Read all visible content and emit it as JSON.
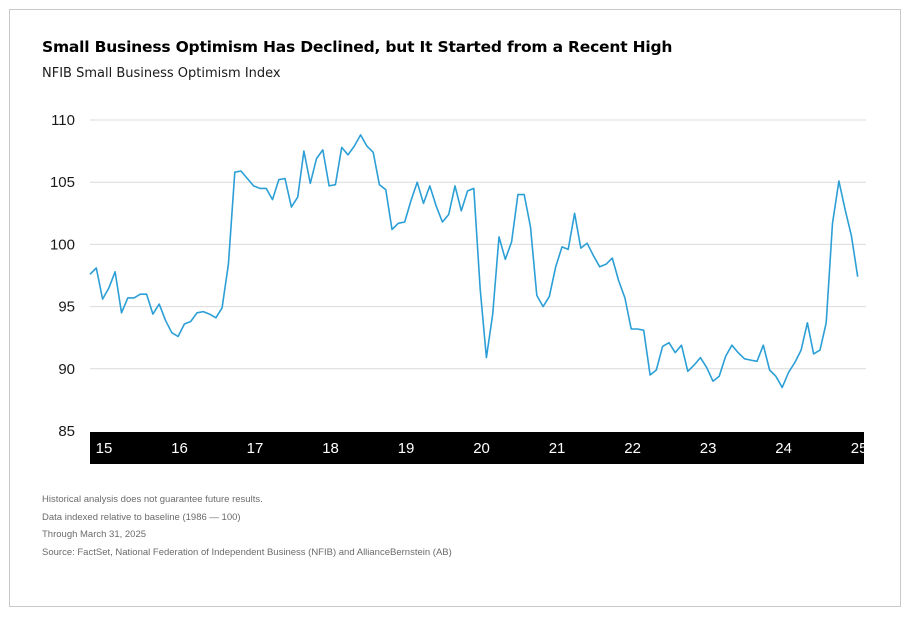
{
  "title": "Small Business Optimism Has Declined, but It Started from a Recent High",
  "subtitle": "NFIB Small Business Optimism Index",
  "notes": [
    "Historical analysis does not guarantee future results.",
    "Data indexed relative to baseline (1986 — 100)",
    "Through March 31, 2025",
    "Source: FactSet, National Federation of Independent Business (NFIB) and AllianceBernstein (AB)"
  ],
  "colors": {
    "line": "#2b9fd6",
    "grid": "#dcdcdc",
    "axis_band": "#000000",
    "axis_text": "#ffffff",
    "text": "#1a1a1a"
  },
  "chart_data": {
    "type": "line",
    "title": "Small Business Optimism Has Declined, but It Started from a Recent High",
    "subtitle": "NFIB Small Business Optimism Index",
    "ylim": [
      85,
      110
    ],
    "yticks": [
      110,
      105,
      100,
      95,
      90,
      85
    ],
    "xlim": [
      2015.0,
      2025.25
    ],
    "xtick_labels": [
      "15",
      "16",
      "17",
      "18",
      "19",
      "20",
      "21",
      "22",
      "23",
      "24",
      "25"
    ],
    "xtick_positions": [
      2015,
      2016,
      2017,
      2018,
      2019,
      2020,
      2021,
      2022,
      2023,
      2024,
      2025
    ],
    "grid": true,
    "legend": "none",
    "series": [
      {
        "x": [
          2015.0,
          2015.083,
          2015.167,
          2015.25,
          2015.333,
          2015.417,
          2015.5,
          2015.583,
          2015.667,
          2015.75,
          2015.833,
          2015.917,
          2016.0,
          2016.083,
          2016.167,
          2016.25,
          2016.333,
          2016.417,
          2016.5,
          2016.583,
          2016.667,
          2016.75,
          2016.833,
          2016.917,
          2017.0,
          2017.083,
          2017.167,
          2017.25,
          2017.333,
          2017.417,
          2017.5,
          2017.583,
          2017.667,
          2017.75,
          2017.833,
          2017.917,
          2018.0,
          2018.083,
          2018.167,
          2018.25,
          2018.333,
          2018.417,
          2018.5,
          2018.583,
          2018.667,
          2018.75,
          2018.833,
          2018.917,
          2019.0,
          2019.083,
          2019.167,
          2019.25,
          2019.333,
          2019.417,
          2019.5,
          2019.583,
          2019.667,
          2019.75,
          2019.833,
          2019.917,
          2020.0,
          2020.083,
          2020.167,
          2020.25,
          2020.333,
          2020.417,
          2020.5,
          2020.583,
          2020.667,
          2020.75,
          2020.833,
          2020.917,
          2021.0,
          2021.083,
          2021.167,
          2021.25,
          2021.333,
          2021.417,
          2021.5,
          2021.583,
          2021.667,
          2021.75,
          2021.833,
          2021.917,
          2022.0,
          2022.083,
          2022.167,
          2022.25,
          2022.333,
          2022.417,
          2022.5,
          2022.583,
          2022.667,
          2022.75,
          2022.833,
          2022.917,
          2023.0,
          2023.083,
          2023.167,
          2023.25,
          2023.333,
          2023.417,
          2023.5,
          2023.583,
          2023.667,
          2023.75,
          2023.833,
          2023.917,
          2024.0,
          2024.083,
          2024.167,
          2024.25,
          2024.333,
          2024.417,
          2024.5,
          2024.583,
          2024.667,
          2024.75,
          2024.833,
          2024.917,
          2025.0,
          2025.083,
          2025.167
        ],
        "y": [
          97.6,
          98.1,
          95.6,
          96.5,
          97.8,
          94.5,
          95.7,
          95.7,
          96.0,
          96.0,
          94.4,
          95.2,
          93.9,
          92.9,
          92.6,
          93.6,
          93.8,
          94.5,
          94.6,
          94.4,
          94.1,
          94.9,
          98.4,
          105.8,
          105.9,
          105.3,
          104.7,
          104.5,
          104.5,
          103.6,
          105.2,
          105.3,
          103.0,
          103.8,
          107.5,
          104.9,
          106.9,
          107.6,
          104.7,
          104.8,
          107.8,
          107.2,
          107.9,
          108.8,
          107.9,
          107.4,
          104.8,
          104.4,
          101.2,
          101.7,
          101.8,
          103.5,
          105.0,
          103.3,
          104.7,
          103.1,
          101.8,
          102.4,
          104.7,
          102.7,
          104.3,
          104.5,
          96.4,
          90.9,
          94.4,
          100.6,
          98.8,
          100.2,
          104.0,
          104.0,
          101.4,
          95.9,
          95.0,
          95.8,
          98.2,
          99.8,
          99.6,
          102.5,
          99.7,
          100.1,
          99.1,
          98.2,
          98.4,
          98.9,
          97.1,
          95.7,
          93.2,
          93.2,
          93.1,
          89.5,
          89.9,
          91.8,
          92.1,
          91.3,
          91.9,
          89.8,
          90.3,
          90.9,
          90.1,
          89.0,
          89.4,
          91.0,
          91.9,
          91.3,
          90.8,
          90.7,
          90.6,
          91.9,
          89.9,
          89.4,
          88.5,
          89.7,
          90.5,
          91.5,
          93.7,
          91.2,
          91.5,
          93.7,
          101.7,
          105.1,
          102.8,
          100.7,
          97.4
        ]
      }
    ]
  }
}
